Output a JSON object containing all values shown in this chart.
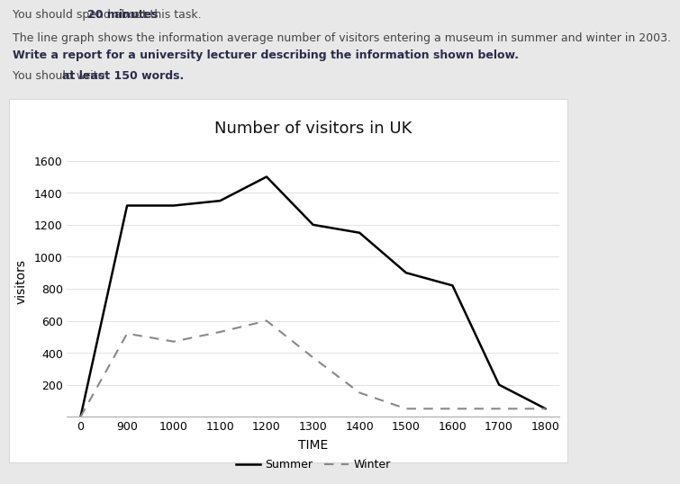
{
  "title": "Number of visitors in UK",
  "xlabel": "TIME",
  "ylabel": "visitors",
  "x_labels": [
    "0",
    "900",
    "1000",
    "1100",
    "1200",
    "1300",
    "1400",
    "1500",
    "1600",
    "1700",
    "1800"
  ],
  "x_values": [
    0,
    1,
    2,
    3,
    4,
    5,
    6,
    7,
    8,
    9,
    10
  ],
  "summer_values": [
    0,
    1320,
    1320,
    1350,
    1500,
    1200,
    1150,
    900,
    820,
    200,
    50
  ],
  "winter_values": [
    0,
    520,
    470,
    530,
    600,
    370,
    150,
    50,
    50,
    50,
    50
  ],
  "ylim": [
    0,
    1700
  ],
  "yticks": [
    200,
    400,
    600,
    800,
    1000,
    1200,
    1400,
    1600
  ],
  "summer_color": "#000000",
  "winter_color": "#888888",
  "bg_color": "#e8e8e8",
  "panel_color": "#ffffff",
  "title_fontsize": 13,
  "axis_label_fontsize": 10,
  "tick_fontsize": 9,
  "legend_fontsize": 9,
  "header_fontsize": 9,
  "header_line1_normal1": "You should spend about ",
  "header_line1_bold": "20 minutes",
  "header_line1_normal2": " on this task.",
  "header_line2": "The line graph shows the information average number of visitors entering a museum in summer and winter in 2003.",
  "header_line3_bold": "Write a report for a university lecturer describing the information shown below.",
  "header_line4_normal": "You should write ",
  "header_line4_bold": "at least 150 words."
}
